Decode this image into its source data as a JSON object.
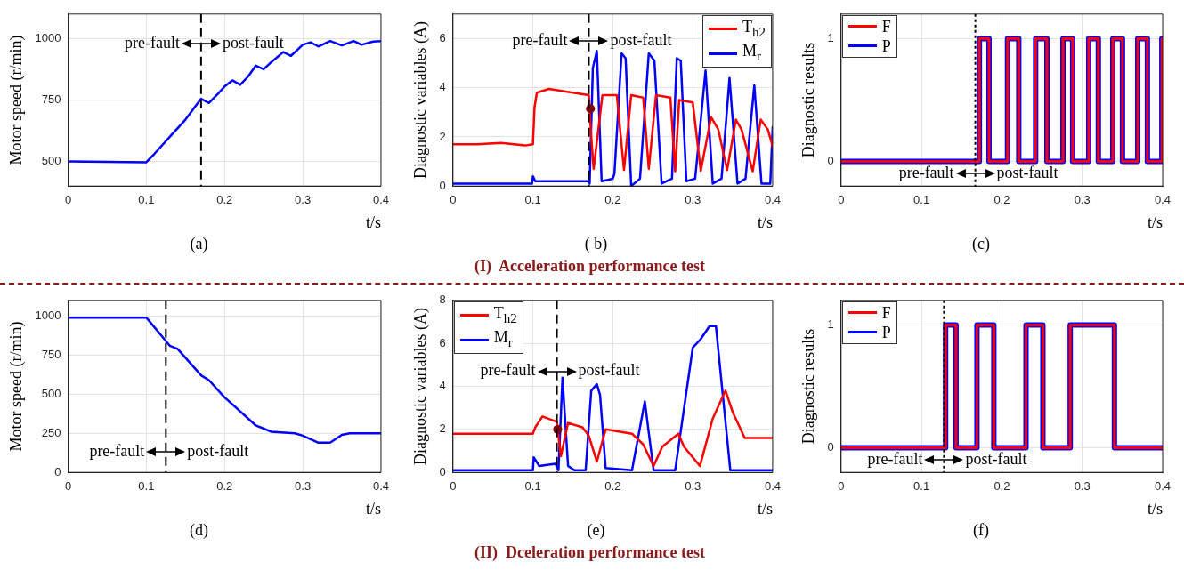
{
  "chart_data": [
    {
      "type": "line",
      "title": "(a)",
      "xlabel": "t/s",
      "ylabel": "Motor speed (r/min)",
      "xlim": [
        0,
        0.4
      ],
      "xticks": [
        0,
        0.1,
        0.2,
        0.3,
        0.4
      ],
      "ylim": [
        400,
        1100
      ],
      "yticks": [
        500,
        750,
        1000
      ],
      "grid": true,
      "legend": false,
      "series": [
        {
          "color": "#0000ff",
          "x": [
            0,
            0.05,
            0.1,
            0.11,
            0.13,
            0.15,
            0.17,
            0.18,
            0.19,
            0.2,
            0.21,
            0.22,
            0.23,
            0.24,
            0.25,
            0.26,
            0.275,
            0.285,
            0.3,
            0.31,
            0.32,
            0.335,
            0.35,
            0.365,
            0.375,
            0.39,
            0.4
          ],
          "values": [
            500,
            498,
            497,
            530,
            600,
            670,
            755,
            738,
            770,
            805,
            830,
            812,
            845,
            890,
            875,
            905,
            945,
            930,
            975,
            985,
            968,
            990,
            972,
            990,
            975,
            988,
            990
          ]
        }
      ],
      "ref_lines": [
        {
          "axis": "x",
          "value": 0.17,
          "color": "#000000",
          "line_style": "dashed"
        }
      ],
      "annotations": [
        {
          "text": "pre-fault",
          "x": 0.17,
          "y": 980
        },
        {
          "text": "post-fault",
          "x": 0.17,
          "y": 980
        }
      ]
    },
    {
      "type": "line",
      "title": "( b)",
      "xlabel": "t/s",
      "ylabel": "Diagnostic variables (A)",
      "xlim": [
        0,
        0.4
      ],
      "xticks": [
        0,
        0.1,
        0.2,
        0.3,
        0.4
      ],
      "ylim": [
        0,
        7
      ],
      "yticks": [
        0,
        2,
        4,
        6
      ],
      "grid": true,
      "legend": "top right",
      "series": [
        {
          "type": "scatter",
          "color": "#800000",
          "marker": "circle",
          "x": [
            0.172
          ],
          "values": [
            3.15
          ]
        },
        {
          "name": "T$_{h2}$",
          "color": "#ff0000",
          "x": [
            0,
            0.03,
            0.06,
            0.09,
            0.1,
            0.102,
            0.105,
            0.12,
            0.15,
            0.17,
            0.173,
            0.176,
            0.187,
            0.205,
            0.214,
            0.223,
            0.238,
            0.245,
            0.254,
            0.272,
            0.278,
            0.283,
            0.3,
            0.31,
            0.323,
            0.332,
            0.343,
            0.354,
            0.361,
            0.375,
            0.385,
            0.394,
            0.4
          ],
          "values": [
            1.7,
            1.7,
            1.75,
            1.65,
            1.7,
            3.2,
            3.8,
            3.95,
            3.8,
            3.7,
            2.0,
            0.7,
            3.7,
            3.7,
            0.65,
            3.7,
            3.6,
            0.7,
            3.7,
            3.6,
            0.6,
            3.5,
            3.4,
            0.62,
            2.8,
            2.3,
            0.65,
            2.7,
            2.3,
            0.6,
            2.7,
            2.3,
            1.6
          ]
        },
        {
          "name": "M$_{r}$",
          "color": "#0000ff",
          "x": [
            0,
            0.05,
            0.099,
            0.1,
            0.103,
            0.12,
            0.169,
            0.171,
            0.175,
            0.18,
            0.186,
            0.2,
            0.202,
            0.211,
            0.216,
            0.223,
            0.234,
            0.245,
            0.252,
            0.261,
            0.274,
            0.28,
            0.285,
            0.292,
            0.303,
            0.316,
            0.325,
            0.336,
            0.346,
            0.356,
            0.366,
            0.377,
            0.386,
            0.397,
            0.4
          ],
          "values": [
            0.1,
            0.1,
            0.1,
            0.4,
            0.2,
            0.2,
            0.2,
            0.1,
            4.8,
            5.5,
            0.2,
            0.3,
            0.5,
            5.4,
            5.2,
            0.0,
            0.3,
            5.4,
            5.1,
            0.1,
            0.3,
            5.2,
            5.1,
            0.2,
            0.3,
            4.7,
            0.1,
            0.3,
            4.4,
            0.1,
            0.3,
            4.1,
            0.1,
            0.1,
            2.4
          ]
        }
      ],
      "ref_lines": [
        {
          "axis": "x",
          "value": 0.17,
          "color": "#000000",
          "line_style": "dashed"
        }
      ],
      "annotations": [
        {
          "text": "pre-fault",
          "x": 0.17,
          "y": 5.9
        },
        {
          "text": "post-fault",
          "x": 0.17,
          "y": 5.9
        },
        "(I)  Acceleration performance test"
      ]
    },
    {
      "type": "step",
      "title": "(c)",
      "xlabel": "t/s",
      "ylabel": "Diagnostic results",
      "xlim": [
        0,
        0.4
      ],
      "xticks": [
        0,
        0.1,
        0.2,
        0.3,
        0.4
      ],
      "ylim": [
        -0.2,
        1.2
      ],
      "yticks": [
        0,
        1
      ],
      "grid": true,
      "legend": "top left",
      "series": [
        {
          "name": "F",
          "color": "#ff0000",
          "x": [
            0,
            0.172,
            0.184,
            0.207,
            0.221,
            0.242,
            0.256,
            0.276,
            0.288,
            0.308,
            0.32,
            0.338,
            0.35,
            0.369,
            0.381,
            0.399,
            0.4
          ],
          "values": [
            0,
            1,
            0,
            1,
            0,
            1,
            0,
            1,
            0,
            1,
            0,
            1,
            0,
            1,
            0,
            1,
            1
          ]
        },
        {
          "name": "P",
          "color": "#0000ff",
          "x": [
            0,
            0.172,
            0.184,
            0.207,
            0.221,
            0.242,
            0.256,
            0.276,
            0.288,
            0.308,
            0.32,
            0.338,
            0.35,
            0.369,
            0.381,
            0.399,
            0.4
          ],
          "values": [
            0,
            1,
            0,
            1,
            0,
            1,
            0,
            1,
            0,
            1,
            0,
            1,
            0,
            1,
            0,
            1,
            1
          ]
        }
      ],
      "ref_lines": [
        {
          "axis": "x",
          "value": 0.167,
          "color": "#000000",
          "line_style": "dotted"
        }
      ],
      "annotations": [
        {
          "text": "pre-fault",
          "x": 0.167,
          "y": -0.1
        },
        {
          "text": "post-fault",
          "x": 0.167,
          "y": -0.1
        }
      ]
    },
    {
      "type": "line",
      "title": "(d)",
      "xlabel": "t/s",
      "ylabel": "Motor speed (r/min)",
      "xlim": [
        0,
        0.4
      ],
      "xticks": [
        0,
        0.1,
        0.2,
        0.3,
        0.4
      ],
      "ylim": [
        0,
        1100
      ],
      "yticks": [
        0,
        250,
        500,
        750,
        1000
      ],
      "grid": true,
      "legend": false,
      "series": [
        {
          "color": "#0000ff",
          "x": [
            0,
            0.05,
            0.1,
            0.125,
            0.13,
            0.14,
            0.17,
            0.18,
            0.2,
            0.24,
            0.26,
            0.29,
            0.3,
            0.32,
            0.335,
            0.35,
            0.36,
            0.4
          ],
          "values": [
            990,
            990,
            990,
            840,
            810,
            790,
            620,
            590,
            480,
            300,
            260,
            250,
            235,
            190,
            190,
            240,
            250,
            250
          ]
        }
      ],
      "ref_lines": [
        {
          "axis": "x",
          "value": 0.125,
          "color": "#000000",
          "line_style": "dashed"
        }
      ],
      "annotations": [
        {
          "text": "pre-fault",
          "x": 0.125,
          "y": 130
        },
        {
          "text": "post-fault",
          "x": 0.125,
          "y": 130
        }
      ]
    },
    {
      "type": "line",
      "title": "(e)",
      "xlabel": "t/s",
      "ylabel": "Diagnostic variables (A)",
      "xlim": [
        0,
        0.4
      ],
      "xticks": [
        0,
        0.1,
        0.2,
        0.3,
        0.4
      ],
      "ylim": [
        0,
        8
      ],
      "yticks": [
        0,
        2,
        4,
        6,
        8
      ],
      "grid": true,
      "legend": "top left",
      "series": [
        {
          "type": "scatter",
          "color": "#800000",
          "marker": "circle",
          "x": [
            0.131
          ],
          "values": [
            2.0
          ]
        },
        {
          "name": "T$_{h2}$",
          "color": "#ff0000",
          "x": [
            0,
            0.05,
            0.1,
            0.103,
            0.112,
            0.13,
            0.135,
            0.144,
            0.162,
            0.17,
            0.18,
            0.191,
            0.224,
            0.238,
            0.251,
            0.262,
            0.282,
            0.289,
            0.309,
            0.325,
            0.341,
            0.35,
            0.365,
            0.4
          ],
          "values": [
            1.8,
            1.8,
            1.8,
            2.1,
            2.6,
            2.35,
            0.75,
            2.3,
            2.1,
            1.7,
            0.5,
            2.0,
            1.8,
            1.3,
            0.3,
            1.2,
            1.8,
            1.2,
            0.3,
            2.5,
            3.8,
            2.8,
            1.6,
            1.6
          ]
        },
        {
          "name": "M$_{r}$",
          "color": "#0000ff",
          "x": [
            0,
            0.05,
            0.1,
            0.101,
            0.108,
            0.128,
            0.132,
            0.137,
            0.144,
            0.152,
            0.166,
            0.173,
            0.18,
            0.184,
            0.191,
            0.224,
            0.24,
            0.251,
            0.278,
            0.3,
            0.31,
            0.321,
            0.329,
            0.347,
            0.4
          ],
          "values": [
            0.1,
            0.1,
            0.1,
            0.7,
            0.3,
            0.4,
            0.1,
            4.4,
            0.3,
            0.1,
            0.1,
            3.8,
            4.1,
            3.6,
            0.2,
            0.1,
            3.3,
            0.1,
            0.1,
            5.8,
            6.2,
            6.8,
            6.8,
            0.1,
            0.1
          ]
        }
      ],
      "ref_lines": [
        {
          "axis": "x",
          "value": 0.13,
          "color": "#000000",
          "line_style": "dashed"
        }
      ],
      "annotations": [
        {
          "text": "pre-fault",
          "x": 0.13,
          "y": 4.7
        },
        {
          "text": "post-fault",
          "x": 0.13,
          "y": 4.7
        },
        "(II)  Dceleration performance test"
      ]
    },
    {
      "type": "step",
      "title": "(f)",
      "xlabel": "t/s",
      "ylabel": "Diagnostic results",
      "xlim": [
        0,
        0.4
      ],
      "xticks": [
        0,
        0.1,
        0.2,
        0.3,
        0.4
      ],
      "ylim": [
        -0.2,
        1.2
      ],
      "yticks": [
        0,
        1
      ],
      "grid": true,
      "legend": "top left",
      "series": [
        {
          "name": "F",
          "color": "#ff0000",
          "x": [
            0,
            0.13,
            0.143,
            0.169,
            0.19,
            0.23,
            0.251,
            0.285,
            0.34,
            0.4
          ],
          "values": [
            0,
            1,
            0,
            1,
            0,
            1,
            0,
            1,
            0,
            0
          ]
        },
        {
          "name": "P",
          "color": "#0000ff",
          "x": [
            0,
            0.13,
            0.143,
            0.169,
            0.19,
            0.23,
            0.251,
            0.285,
            0.34,
            0.4
          ],
          "values": [
            0,
            1,
            0,
            1,
            0,
            1,
            0,
            1,
            0,
            0
          ]
        }
      ],
      "ref_lines": [
        {
          "axis": "x",
          "value": 0.128,
          "color": "#000000",
          "line_style": "dotted"
        }
      ],
      "annotations": [
        {
          "text": "pre-fault",
          "x": 0.128,
          "y": -0.1
        },
        {
          "text": "post-fault",
          "x": 0.128,
          "y": -0.1
        }
      ]
    }
  ]
}
